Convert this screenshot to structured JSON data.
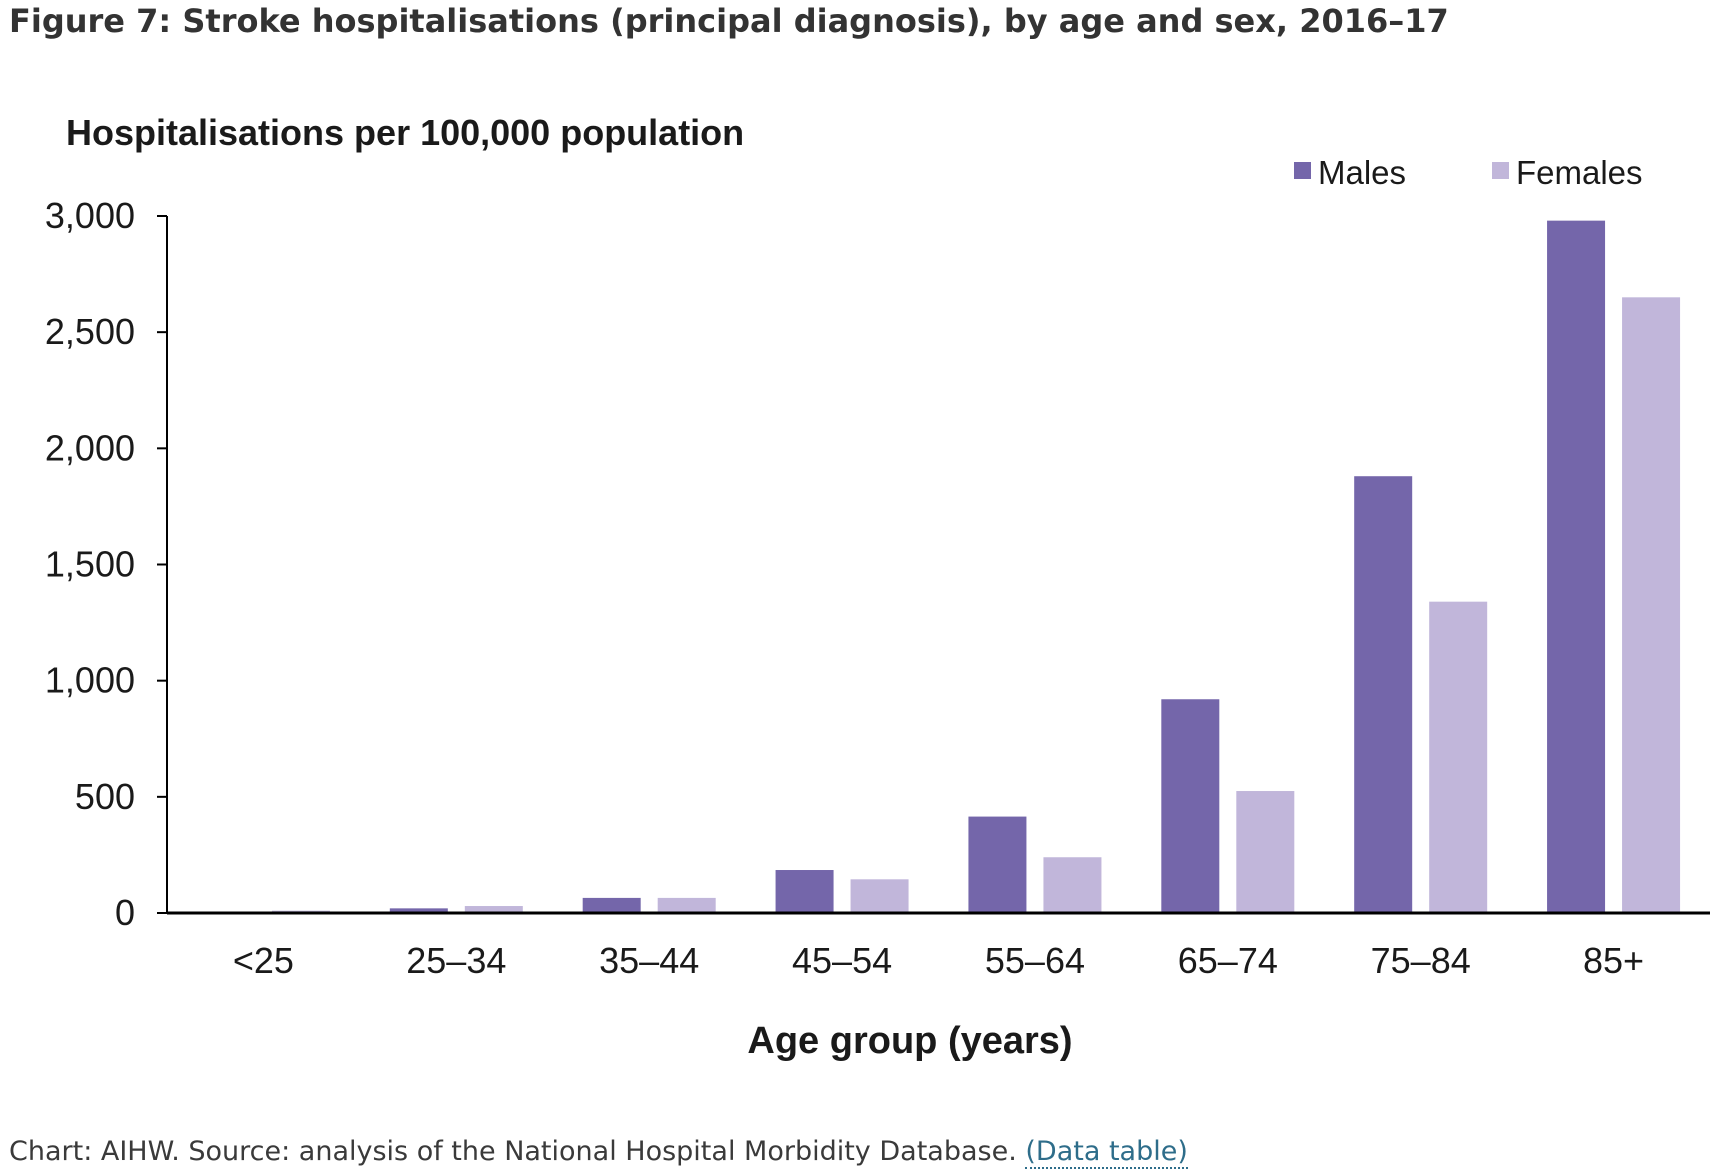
{
  "figure": {
    "title": "Figure 7: Stroke hospitalisations (principal diagnosis), by age and sex, 2016–17"
  },
  "caption": {
    "text": "Chart: AIHW. Source: analysis of the National Hospital Morbidity Database.",
    "link_label": "(Data table)"
  },
  "colors": {
    "males": "#7466aa",
    "females": "#c1b6da",
    "axis": "#000000",
    "link": "#2e6d8a"
  },
  "chart_data": {
    "type": "bar",
    "title": "",
    "ylabel": "Hospitalisations per 100,000 population",
    "xlabel": "Age group (years)",
    "categories": [
      "<25",
      "25–34",
      "35–44",
      "45–54",
      "55–64",
      "65–74",
      "75–84",
      "85+"
    ],
    "series": [
      {
        "name": "Males",
        "values": [
          5,
          20,
          65,
          185,
          415,
          920,
          1880,
          2980
        ]
      },
      {
        "name": "Females",
        "values": [
          10,
          30,
          65,
          145,
          240,
          525,
          1340,
          2650
        ]
      }
    ],
    "ylim": [
      0,
      3000
    ],
    "yticks": [
      0,
      500,
      1000,
      1500,
      2000,
      2500,
      3000
    ],
    "ytick_labels": [
      "0",
      "500",
      "1,000",
      "1,500",
      "2,000",
      "2,500",
      "3,000"
    ],
    "grid": false,
    "legend_position": "top-right"
  }
}
